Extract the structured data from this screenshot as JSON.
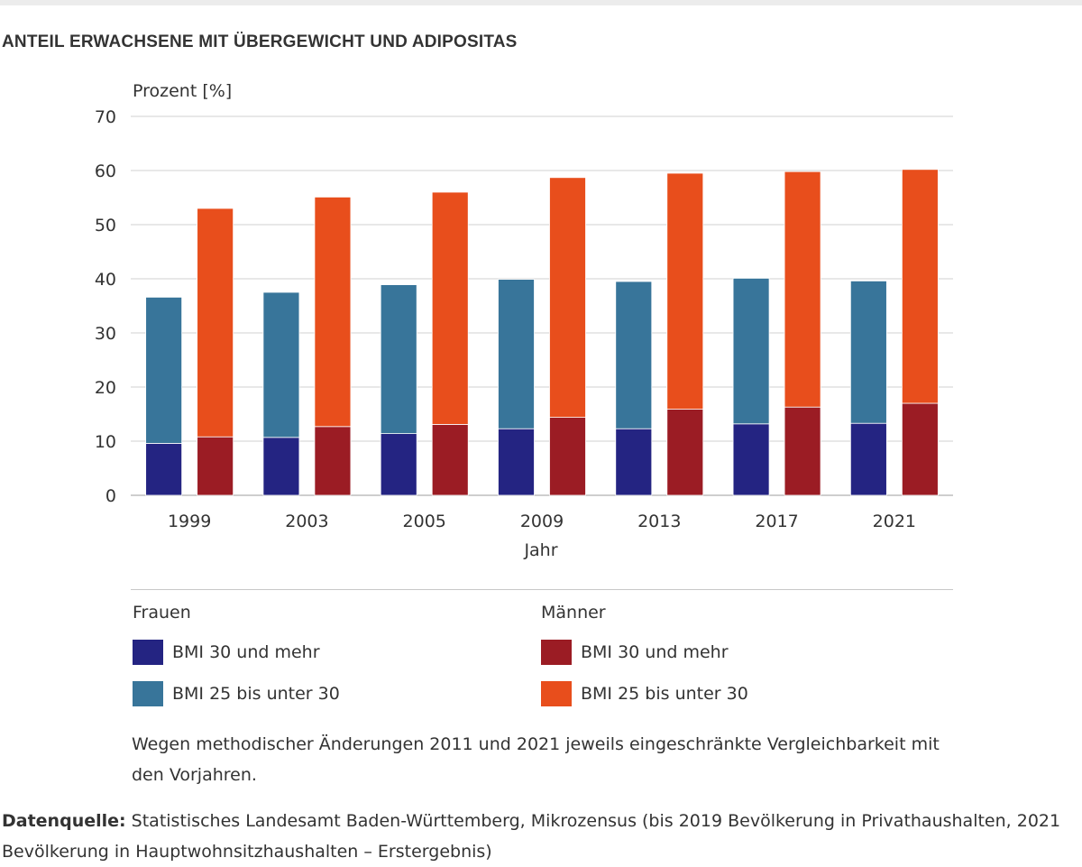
{
  "title": "ANTEIL ERWACHSENE MIT ÜBERGEWICHT UND ADIPOSITAS",
  "chart_data": {
    "type": "bar",
    "stacked": true,
    "title": "ANTEIL ERWACHSENE MIT ÜBERGEWICHT UND ADIPOSITAS",
    "ylabel": "Prozent [%]",
    "xlabel": "Jahr",
    "ylim": [
      0,
      70
    ],
    "yticks": [
      0,
      10,
      20,
      30,
      40,
      50,
      60,
      70
    ],
    "grid": true,
    "categories": [
      "1999",
      "2003",
      "2005",
      "2009",
      "2013",
      "2017",
      "2021"
    ],
    "groups": [
      {
        "name": "Frauen",
        "series": [
          {
            "name": "BMI 30 und mehr",
            "color": "#242482",
            "values": [
              9.6,
              10.7,
              11.4,
              12.3,
              12.3,
              13.2,
              13.3
            ]
          },
          {
            "name": "BMI 25 bis unter 30",
            "color": "#38759a",
            "values": [
              27.0,
              26.8,
              27.5,
              27.6,
              27.2,
              26.9,
              26.3
            ]
          }
        ]
      },
      {
        "name": "Männer",
        "series": [
          {
            "name": "BMI 30 und mehr",
            "color": "#9b1c24",
            "values": [
              10.8,
              12.7,
              13.1,
              14.4,
              15.9,
              16.3,
              17.0
            ]
          },
          {
            "name": "BMI 25 bis unter 30",
            "color": "#e84e1c",
            "values": [
              42.2,
              42.4,
              42.9,
              44.3,
              43.6,
              43.5,
              43.2
            ]
          }
        ]
      }
    ]
  },
  "legend": {
    "frauen": {
      "title": "Frauen",
      "items": [
        {
          "label": "BMI 30 und mehr",
          "color": "#242482"
        },
        {
          "label": "BMI 25 bis unter 30",
          "color": "#38759a"
        }
      ]
    },
    "maenner": {
      "title": "Männer",
      "items": [
        {
          "label": "BMI 30 und mehr",
          "color": "#9b1c24"
        },
        {
          "label": "BMI 25 bis unter 30",
          "color": "#e84e1c"
        }
      ]
    }
  },
  "note": "Wegen methodischer Änderungen 2011 und 2021 jeweils eingeschränkte Vergleichbarkeit mit den Vorjahren.",
  "source": {
    "label": "Datenquelle:",
    "text": "Statistisches Landesamt Baden-Württemberg, Mikrozensus (bis 2019 Bevölkerung in Privathaushalten, 2021 Bevölkerung in Hauptwohnsitzhaushalten – Erstergebnis)"
  }
}
